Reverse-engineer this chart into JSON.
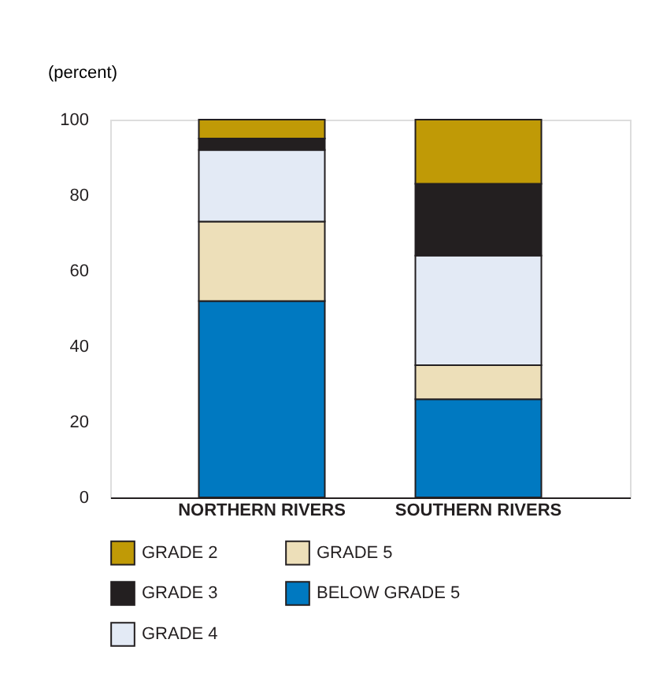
{
  "chart_data": {
    "type": "bar",
    "stacked": true,
    "ylabel": "(percent)",
    "categories": [
      "NORTHERN RIVERS",
      "SOUTHERN RIVERS"
    ],
    "series": [
      {
        "name": "BELOW GRADE 5",
        "color": "#0079c1",
        "values": [
          52,
          26
        ]
      },
      {
        "name": "GRADE 5",
        "color": "#eddfb9",
        "values": [
          21,
          9
        ]
      },
      {
        "name": "GRADE 4",
        "color": "#e3eaf5",
        "values": [
          19,
          29
        ]
      },
      {
        "name": "GRADE 3",
        "color": "#231f20",
        "values": [
          3,
          19
        ]
      },
      {
        "name": "GRADE 2",
        "color": "#c09a06",
        "values": [
          5,
          17
        ]
      }
    ],
    "ylim": [
      0,
      100
    ],
    "yticks": [
      0,
      20,
      40,
      60,
      80,
      100
    ],
    "grid": false,
    "legend": "bottom"
  }
}
